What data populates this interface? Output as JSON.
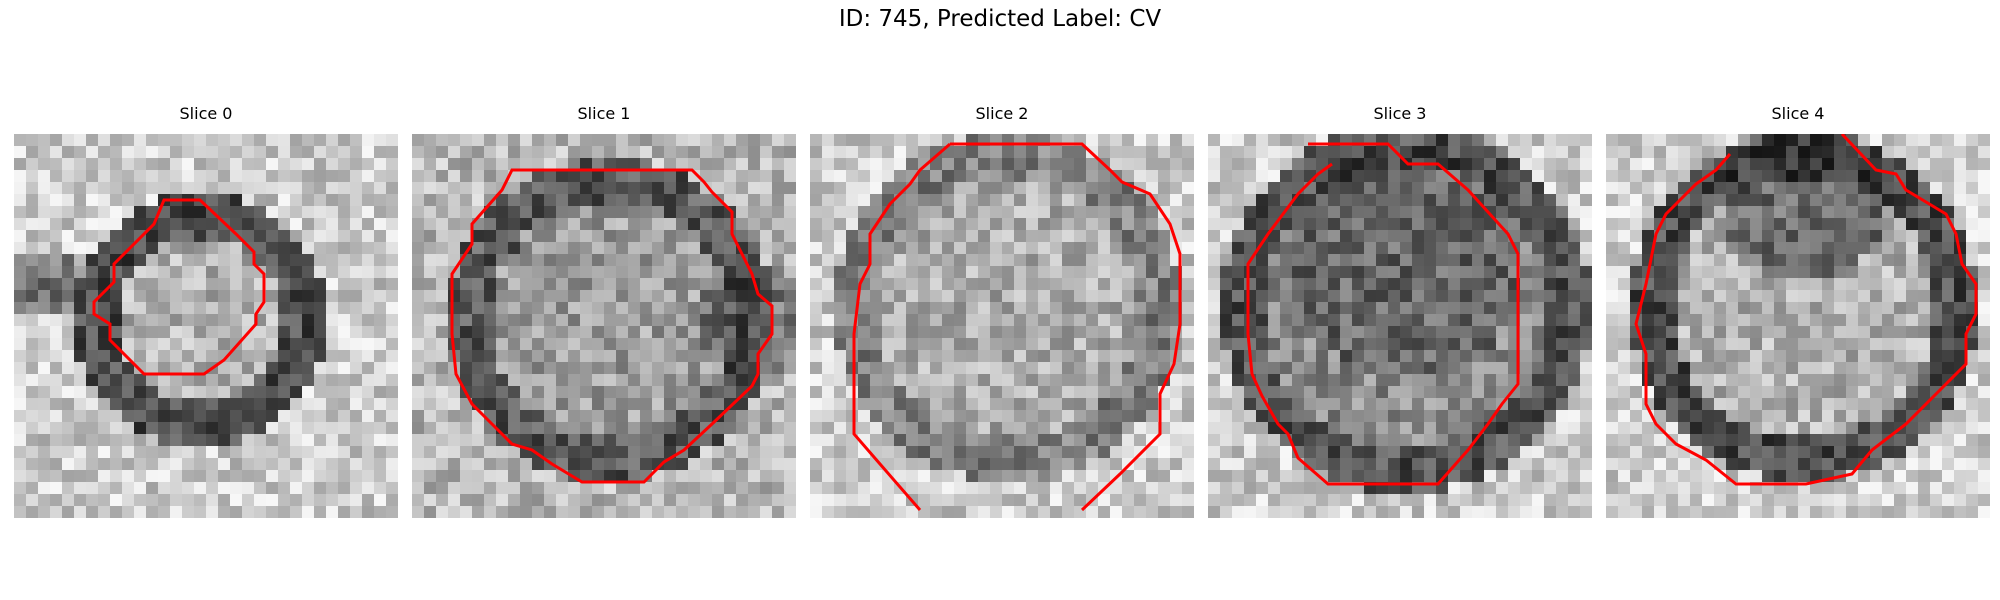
{
  "figure": {
    "title": "ID: 745, Predicted Label: CV"
  },
  "slices": [
    {
      "label": "Slice 0"
    },
    {
      "label": "Slice 1"
    },
    {
      "label": "Slice 2"
    },
    {
      "label": "Slice 3"
    },
    {
      "label": "Slice 4"
    }
  ],
  "colors": {
    "contour": "#ff0000",
    "background": "#ffffff",
    "colormap": "gray"
  }
}
